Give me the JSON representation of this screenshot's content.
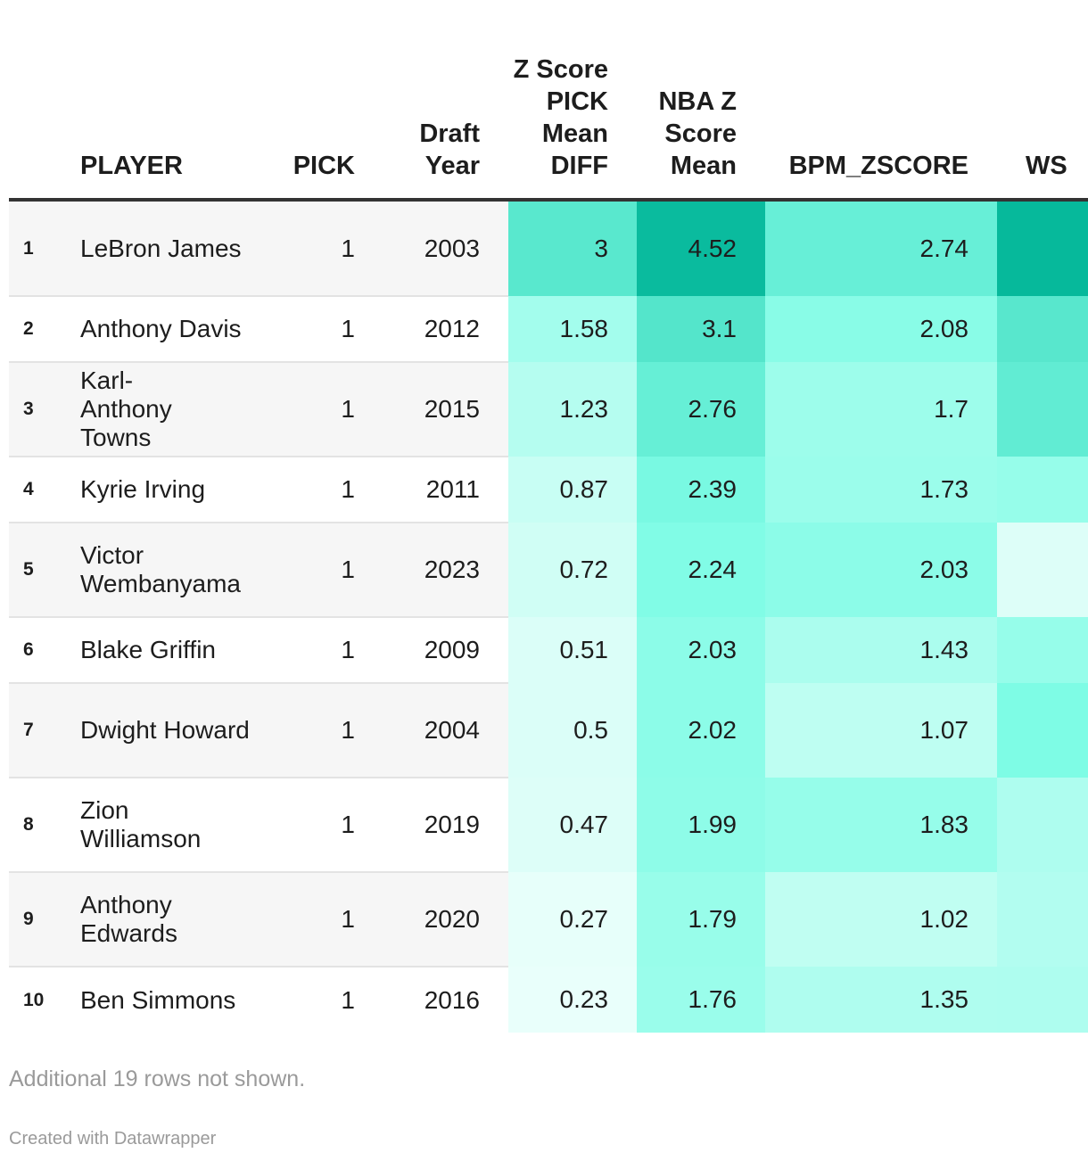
{
  "table": {
    "columns": {
      "rank": "",
      "player": "PLAYER",
      "pick": "PICK",
      "draft_year": "Draft Year",
      "z_diff": "Z Score PICK Mean DIFF",
      "z_mean": "NBA Z Score Mean",
      "bpm": "BPM_ZSCORE",
      "ws": "WS"
    },
    "rows": [
      {
        "rank": "1",
        "player": "LeBron James",
        "pick": "1",
        "year": "2003",
        "z_diff": "3",
        "z_mean": "4.52",
        "bpm": "2.74"
      },
      {
        "rank": "2",
        "player": "Anthony Davis",
        "pick": "1",
        "year": "2012",
        "z_diff": "1.58",
        "z_mean": "3.1",
        "bpm": "2.08"
      },
      {
        "rank": "3",
        "player": "Karl-Anthony Towns",
        "pick": "1",
        "year": "2015",
        "z_diff": "1.23",
        "z_mean": "2.76",
        "bpm": "1.7"
      },
      {
        "rank": "4",
        "player": "Kyrie Irving",
        "pick": "1",
        "year": "2011",
        "z_diff": "0.87",
        "z_mean": "2.39",
        "bpm": "1.73"
      },
      {
        "rank": "5",
        "player": "Victor Wembanyama",
        "pick": "1",
        "year": "2023",
        "z_diff": "0.72",
        "z_mean": "2.24",
        "bpm": "2.03"
      },
      {
        "rank": "6",
        "player": "Blake Griffin",
        "pick": "1",
        "year": "2009",
        "z_diff": "0.51",
        "z_mean": "2.03",
        "bpm": "1.43"
      },
      {
        "rank": "7",
        "player": "Dwight Howard",
        "pick": "1",
        "year": "2004",
        "z_diff": "0.5",
        "z_mean": "2.02",
        "bpm": "1.07"
      },
      {
        "rank": "8",
        "player": "Zion Williamson",
        "pick": "1",
        "year": "2019",
        "z_diff": "0.47",
        "z_mean": "1.99",
        "bpm": "1.83"
      },
      {
        "rank": "9",
        "player": "Anthony Edwards",
        "pick": "1",
        "year": "2020",
        "z_diff": "0.27",
        "z_mean": "1.79",
        "bpm": "1.02"
      },
      {
        "rank": "10",
        "player": "Ben Simmons",
        "pick": "1",
        "year": "2016",
        "z_diff": "0.23",
        "z_mean": "1.76",
        "bpm": "1.35"
      }
    ],
    "ws_intensity": [
      1.0,
      0.66,
      0.62,
      0.4,
      0.1,
      0.4,
      0.5,
      0.3,
      0.28,
      0.3
    ]
  },
  "heat_colors": {
    "low": "#f5fffd",
    "mid": "#7efce5",
    "high": "#06b99b"
  },
  "footer": {
    "note": "Additional 19 rows not shown.",
    "credit": "Created with Datawrapper"
  },
  "chart_data": {
    "type": "table",
    "title": "",
    "columns": [
      "PLAYER",
      "PICK",
      "Draft Year",
      "Z Score PICK Mean DIFF",
      "NBA Z Score Mean",
      "BPM_ZSCORE",
      "WS"
    ],
    "categories": [
      "LeBron James",
      "Anthony Davis",
      "Karl-Anthony Towns",
      "Kyrie Irving",
      "Victor Wembanyama",
      "Blake Griffin",
      "Dwight Howard",
      "Zion Williamson",
      "Anthony Edwards",
      "Ben Simmons"
    ],
    "series": [
      {
        "name": "PICK",
        "values": [
          1,
          1,
          1,
          1,
          1,
          1,
          1,
          1,
          1,
          1
        ]
      },
      {
        "name": "Draft Year",
        "values": [
          2003,
          2012,
          2015,
          2011,
          2023,
          2009,
          2004,
          2019,
          2020,
          2016
        ]
      },
      {
        "name": "Z Score PICK Mean DIFF",
        "values": [
          3,
          1.58,
          1.23,
          0.87,
          0.72,
          0.51,
          0.5,
          0.47,
          0.27,
          0.23
        ]
      },
      {
        "name": "NBA Z Score Mean",
        "values": [
          4.52,
          3.1,
          2.76,
          2.39,
          2.24,
          2.03,
          2.02,
          1.99,
          1.79,
          1.76
        ]
      },
      {
        "name": "BPM_ZSCORE",
        "values": [
          2.74,
          2.08,
          1.7,
          1.73,
          2.03,
          1.43,
          1.07,
          1.83,
          1.02,
          1.35
        ]
      }
    ]
  }
}
